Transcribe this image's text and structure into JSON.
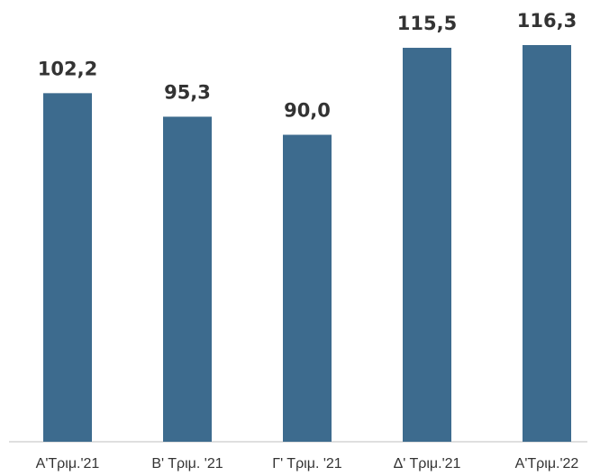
{
  "chart_data": {
    "type": "bar",
    "categories": [
      "Α'Τριμ.'21",
      "Β' Τριμ. '21",
      "Γ' Τριμ. '21",
      "Δ' Τριμ.'21",
      "Α'Τριμ.'22"
    ],
    "values": [
      102.2,
      95.3,
      90.0,
      115.5,
      116.3
    ],
    "value_labels": [
      "102,2",
      "95,3",
      "90,0",
      "115,5",
      "116,3"
    ],
    "color": "#3d6b8e"
  }
}
